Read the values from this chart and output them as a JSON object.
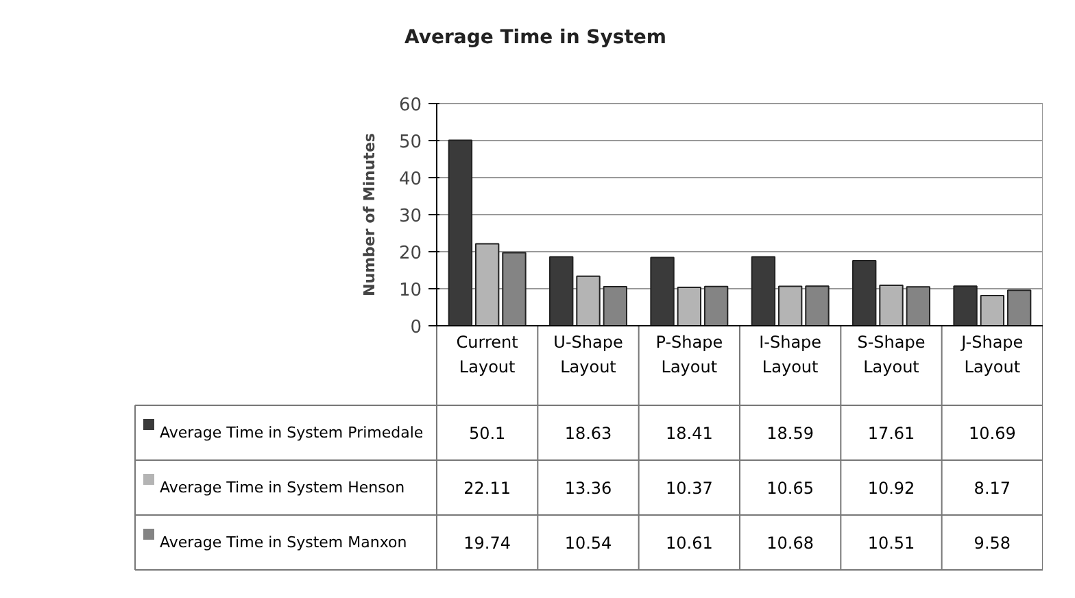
{
  "chart_data": {
    "type": "bar",
    "title": "Average Time in System",
    "ylabel": "Number of Minutes",
    "categories": [
      "Current Layout",
      "U-Shape Layout",
      "P-Shape Layout",
      "I-Shape Layout",
      "S-Shape Layout",
      "J-Shape Layout"
    ],
    "series": [
      {
        "name": "Average Time in System Primedale",
        "color": "#3a3a3a",
        "values": [
          50.1,
          18.63,
          18.41,
          18.59,
          17.61,
          10.69
        ]
      },
      {
        "name": "Average Time in System Henson",
        "color": "#b4b4b4",
        "values": [
          22.11,
          13.36,
          10.37,
          10.65,
          10.92,
          8.17
        ]
      },
      {
        "name": "Average Time in System Manxon",
        "color": "#848484",
        "values": [
          19.74,
          10.54,
          10.61,
          10.68,
          10.51,
          9.58
        ]
      }
    ],
    "ylim": [
      0,
      60
    ],
    "yticks": [
      0,
      10,
      20,
      30,
      40,
      50,
      60
    ],
    "grid": "y",
    "legend": "bottom",
    "data_labels": true
  }
}
